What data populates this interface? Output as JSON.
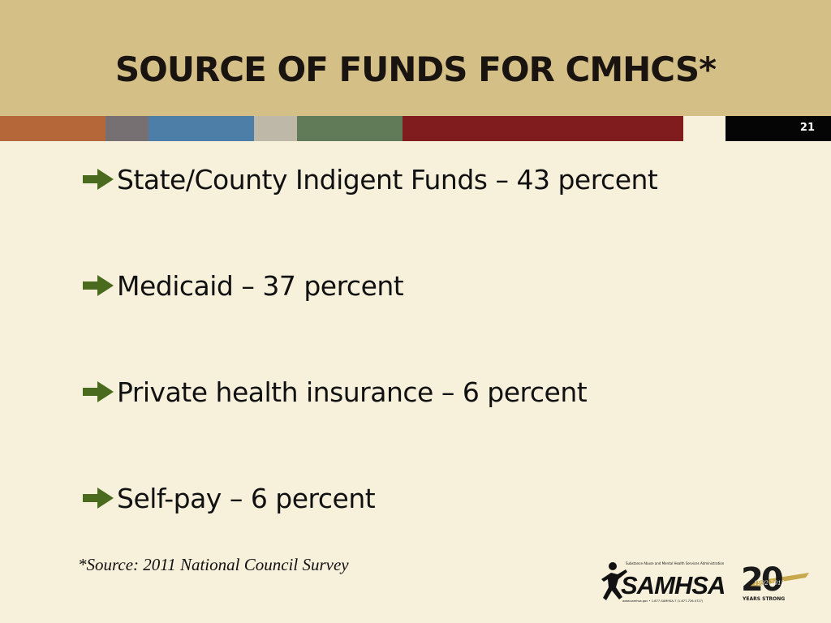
{
  "slide": {
    "title": "SOURCE OF FUNDS FOR CMHCS*",
    "page_number": "21",
    "bullets": [
      "State/County Indigent Funds – 43 percent",
      "Medicaid – 37 percent",
      "Private health insurance – 6 percent",
      "Self-pay – 6 percent"
    ],
    "source_note": "*Source: 2011 National Council Survey"
  },
  "logo": {
    "name": "SAMHSA",
    "tagline": "Substance Abuse and Mental Health Services Administration",
    "contact": "www.samhsa.gov • 1-877-SAMHSA-7 (1-877-726-4727)",
    "anniversary_number": "20",
    "anniversary_years": "1992-2012",
    "anniversary_text": "YEARS STRONG"
  },
  "colors": {
    "title_band": "#d4bf86",
    "background": "#f7f1dc",
    "arrow": "#4a6a1e",
    "stripe": [
      "#b5673a",
      "#777072",
      "#4c7ea8",
      "#bdb8a8",
      "#617a58",
      "#801c1e",
      "#f7f1dc"
    ]
  }
}
